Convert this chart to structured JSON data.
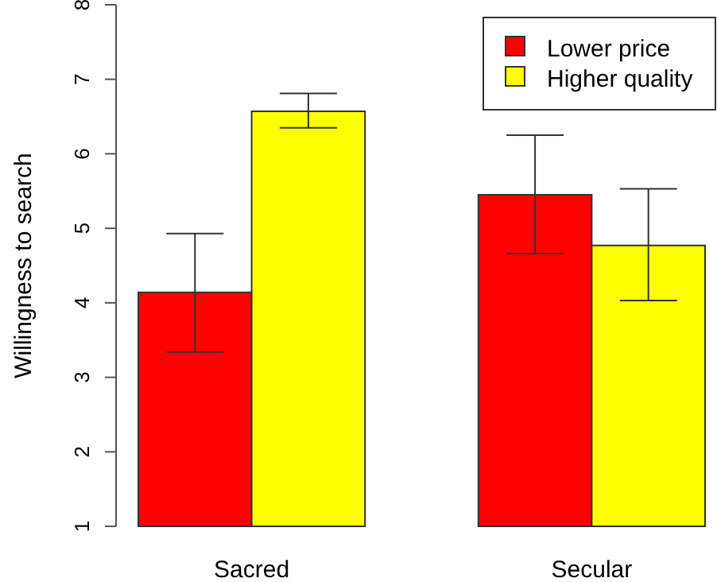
{
  "chart_data": {
    "type": "bar",
    "ylabel": "Willingness to search",
    "categories": [
      "Sacred",
      "Secular"
    ],
    "series": [
      {
        "name": "Lower price",
        "color": "#ff0000",
        "values": [
          4.14,
          5.45
        ],
        "errors": [
          [
            3.34,
            4.93
          ],
          [
            4.66,
            6.25
          ]
        ]
      },
      {
        "name": "Higher quality",
        "color": "#ffff00",
        "values": [
          6.57,
          4.77
        ],
        "errors": [
          [
            6.35,
            6.81
          ],
          [
            4.03,
            5.53
          ]
        ]
      }
    ],
    "ylim": [
      1,
      8
    ],
    "yticks": [
      1,
      2,
      3,
      4,
      5,
      6,
      7,
      8
    ],
    "legend": "top right",
    "grid": false
  }
}
